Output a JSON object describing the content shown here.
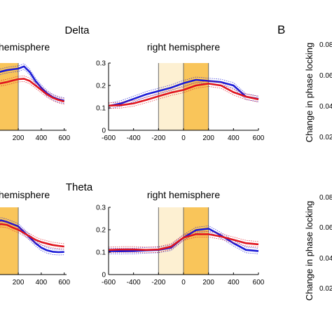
{
  "figure": {
    "panel_letter": "B",
    "side_ylabel": "Change in phase locking",
    "side_ticks_top": [
      "0.08",
      "0.06",
      "0.04",
      "0.02"
    ],
    "side_ticks_bottom": [
      "0.08",
      "0.06",
      "0.04",
      "0.02"
    ],
    "colors": {
      "series_blue": "#1a1ad6",
      "series_red": "#e0141e",
      "window_light": "#fdf0d2",
      "window_dark": "#f9c55a",
      "window_edge": "#6b6b6b"
    }
  },
  "chart_data": [
    {
      "type": "line",
      "title": "Delta",
      "subtitle": "hemisphere",
      "clipped_left": true,
      "x_ticks": [
        "0",
        "200",
        "400",
        "600"
      ],
      "y_ticks": [],
      "xlim": [
        -20,
        620
      ],
      "ylim": [
        0,
        0.3
      ],
      "shaded_windows": [
        {
          "shade": "dark",
          "x": [
            -20,
            200
          ]
        }
      ],
      "x": [
        -20,
        0,
        50,
        100,
        150,
        200,
        250,
        300,
        350,
        400,
        450,
        500,
        550,
        600
      ],
      "series": [
        {
          "color": "blue",
          "values": [
            0.245,
            0.255,
            0.262,
            0.268,
            0.272,
            0.275,
            0.285,
            0.26,
            0.22,
            0.19,
            0.165,
            0.148,
            0.138,
            0.132
          ]
        },
        {
          "color": "red",
          "values": [
            0.2,
            0.205,
            0.21,
            0.215,
            0.222,
            0.228,
            0.23,
            0.22,
            0.2,
            0.18,
            0.16,
            0.145,
            0.135,
            0.128
          ]
        }
      ]
    },
    {
      "type": "line",
      "subtitle": "right hemisphere",
      "clipped_left": false,
      "x_ticks": [
        "-600",
        "-400",
        "-200",
        "0",
        "200",
        "400",
        "600"
      ],
      "y_ticks": [
        "0",
        "0.1",
        "0.2",
        "0.3"
      ],
      "xlim": [
        -600,
        600
      ],
      "ylim": [
        0,
        0.3
      ],
      "shaded_windows": [
        {
          "shade": "light",
          "x": [
            -200,
            0
          ]
        },
        {
          "shade": "dark",
          "x": [
            0,
            200
          ]
        }
      ],
      "x": [
        -600,
        -500,
        -400,
        -300,
        -200,
        -100,
        0,
        100,
        200,
        300,
        400,
        500,
        600
      ],
      "series": [
        {
          "color": "blue",
          "values": [
            0.108,
            0.12,
            0.14,
            0.16,
            0.175,
            0.19,
            0.21,
            0.225,
            0.22,
            0.215,
            0.2,
            0.15,
            0.14
          ]
        },
        {
          "color": "red",
          "values": [
            0.11,
            0.112,
            0.12,
            0.135,
            0.152,
            0.168,
            0.18,
            0.2,
            0.208,
            0.2,
            0.17,
            0.15,
            0.138
          ]
        }
      ]
    },
    {
      "type": "line",
      "title": "Theta",
      "subtitle": "hemisphere",
      "clipped_left": true,
      "x_ticks": [
        "0",
        "200",
        "400",
        "600"
      ],
      "y_ticks": [],
      "xlim": [
        -20,
        620
      ],
      "ylim": [
        0,
        0.3
      ],
      "shaded_windows": [
        {
          "shade": "dark",
          "x": [
            -20,
            200
          ]
        }
      ],
      "x": [
        -20,
        0,
        50,
        100,
        150,
        200,
        250,
        300,
        350,
        400,
        450,
        500,
        550,
        600
      ],
      "series": [
        {
          "color": "blue",
          "values": [
            0.22,
            0.235,
            0.242,
            0.235,
            0.225,
            0.215,
            0.19,
            0.165,
            0.14,
            0.12,
            0.108,
            0.102,
            0.1,
            0.101
          ]
        },
        {
          "color": "red",
          "values": [
            0.21,
            0.22,
            0.225,
            0.222,
            0.21,
            0.2,
            0.185,
            0.17,
            0.155,
            0.145,
            0.138,
            0.132,
            0.128,
            0.125
          ]
        }
      ]
    },
    {
      "type": "line",
      "subtitle": "right hemisphere",
      "clipped_left": false,
      "x_ticks": [
        "-600",
        "-400",
        "-200",
        "0",
        "200",
        "400",
        "600"
      ],
      "y_ticks": [
        "0",
        "0.1",
        "0.2",
        "0.3"
      ],
      "xlim": [
        -600,
        600
      ],
      "ylim": [
        0,
        0.3
      ],
      "shaded_windows": [
        {
          "shade": "light",
          "x": [
            -200,
            0
          ]
        },
        {
          "shade": "dark",
          "x": [
            0,
            200
          ]
        }
      ],
      "x": [
        -600,
        -500,
        -400,
        -300,
        -200,
        -100,
        0,
        100,
        200,
        300,
        400,
        500,
        600
      ],
      "series": [
        {
          "color": "blue",
          "values": [
            0.105,
            0.104,
            0.105,
            0.108,
            0.11,
            0.12,
            0.165,
            0.198,
            0.205,
            0.175,
            0.14,
            0.11,
            0.105
          ]
        },
        {
          "color": "red",
          "values": [
            0.11,
            0.112,
            0.112,
            0.11,
            0.112,
            0.125,
            0.165,
            0.18,
            0.18,
            0.17,
            0.155,
            0.14,
            0.135
          ]
        }
      ]
    }
  ]
}
